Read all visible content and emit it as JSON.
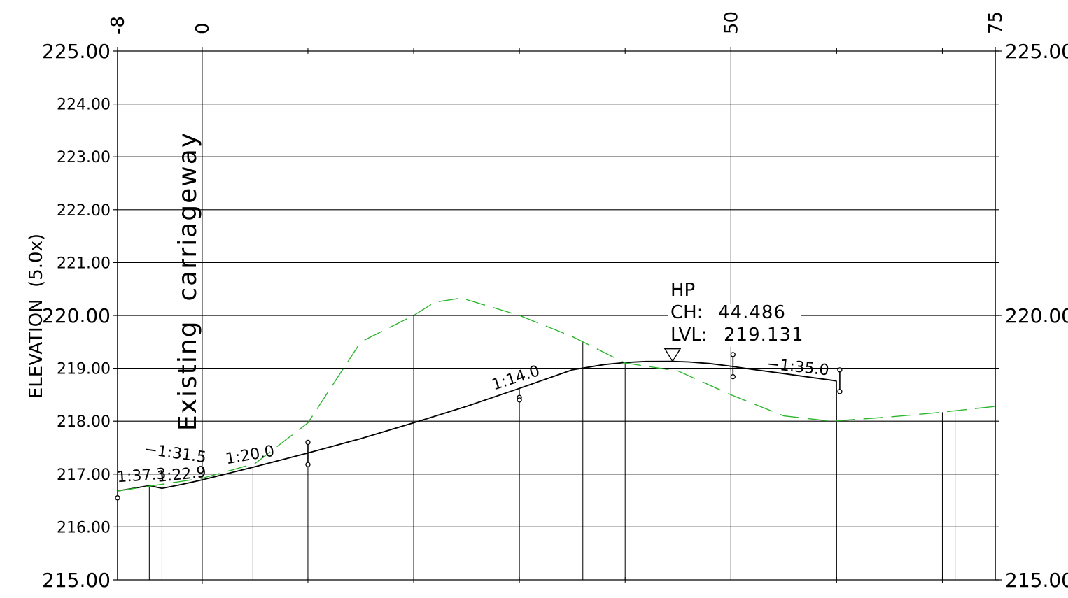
{
  "chart_data": {
    "type": "line",
    "ylabel": "ELEVATION  (5.0x)",
    "vertical_label": "Existing  carriageway",
    "xlim": [
      -8,
      75
    ],
    "ylim": [
      215,
      225
    ],
    "top_ticks": [
      "-8",
      "0",
      "50",
      "75"
    ],
    "top_tick_values": [
      -8,
      0,
      50,
      75
    ],
    "minor_top_ticks": [
      10,
      20,
      30,
      40,
      60,
      70
    ],
    "y_ticks_left": [
      "215.00",
      "216.00",
      "217.00",
      "218.00",
      "219.00",
      "220.00",
      "221.00",
      "222.00",
      "223.00",
      "224.00",
      "225.00"
    ],
    "y_tick_left_values": [
      215,
      216,
      217,
      218,
      219,
      220,
      221,
      222,
      223,
      224,
      225
    ],
    "y_ticks_right": [
      "215.00",
      "220.00",
      "225.00"
    ],
    "y_tick_right_values": [
      215,
      220,
      225
    ],
    "grid": true,
    "series": [
      {
        "role": "design",
        "color": "#000000",
        "dashed": false,
        "x": [
          -8,
          -5,
          -3.8,
          -2,
          0,
          5,
          10,
          15,
          20,
          25,
          30,
          35,
          38,
          40,
          42,
          44.486,
          46,
          48,
          50,
          52,
          55,
          60
        ],
        "y": [
          216.68,
          216.78,
          216.73,
          216.8,
          216.89,
          217.14,
          217.4,
          217.67,
          217.97,
          218.28,
          218.62,
          218.97,
          219.07,
          219.11,
          219.13,
          219.131,
          219.12,
          219.09,
          219.04,
          218.98,
          218.9,
          218.76
        ]
      },
      {
        "role": "existing",
        "color": "#2db52d",
        "dashed": true,
        "x": [
          -8,
          0,
          5,
          10,
          15,
          20,
          22,
          24.5,
          30,
          35,
          40,
          45,
          50,
          55,
          59.5,
          65,
          70,
          75
        ],
        "y": [
          216.68,
          216.92,
          217.2,
          217.97,
          219.5,
          220.0,
          220.25,
          220.33,
          220.0,
          219.6,
          219.1,
          218.95,
          218.5,
          218.1,
          218.0,
          218.08,
          218.17,
          218.28
        ]
      }
    ],
    "station_lines": [
      -8,
      -5,
      -3.8,
      0,
      4.8,
      10,
      20,
      30,
      36,
      40,
      50,
      60,
      70,
      71.2
    ],
    "grade_labels": [
      {
        "text": "1:37.3",
        "x": -5.7,
        "y": 216.88,
        "angle": -4
      },
      {
        "text": "−1:31.5",
        "x": -2.6,
        "y": 217.3,
        "angle": 8
      },
      {
        "text": "1:22.9",
        "x": -1.9,
        "y": 216.9,
        "angle": -6
      },
      {
        "text": "1:20.0",
        "x": 4.6,
        "y": 217.27,
        "angle": -10
      },
      {
        "text": "1:14.0",
        "x": 29.8,
        "y": 218.73,
        "angle": -18
      },
      {
        "text": "−1:35.0",
        "x": 56.3,
        "y": 218.93,
        "angle": 6
      }
    ],
    "markers": [
      {
        "x": -8,
        "y_top": 216.55,
        "y_bottom": 216.55
      },
      {
        "x": 10,
        "y_top": 217.6,
        "y_bottom": 217.18
      },
      {
        "x": 30,
        "y_top": 218.45,
        "y_bottom": 218.4
      },
      {
        "x": 50.2,
        "y_top": 219.26,
        "y_bottom": 218.84
      },
      {
        "x": 60.3,
        "y_top": 218.97,
        "y_bottom": 218.56
      }
    ],
    "hp_marker": {
      "x": 44.486,
      "y": 219.131,
      "line1": "HP",
      "ch_label": "CH:",
      "ch_value": "44.486",
      "lvl_label": "LVL:",
      "lvl_value": "219.131"
    }
  }
}
